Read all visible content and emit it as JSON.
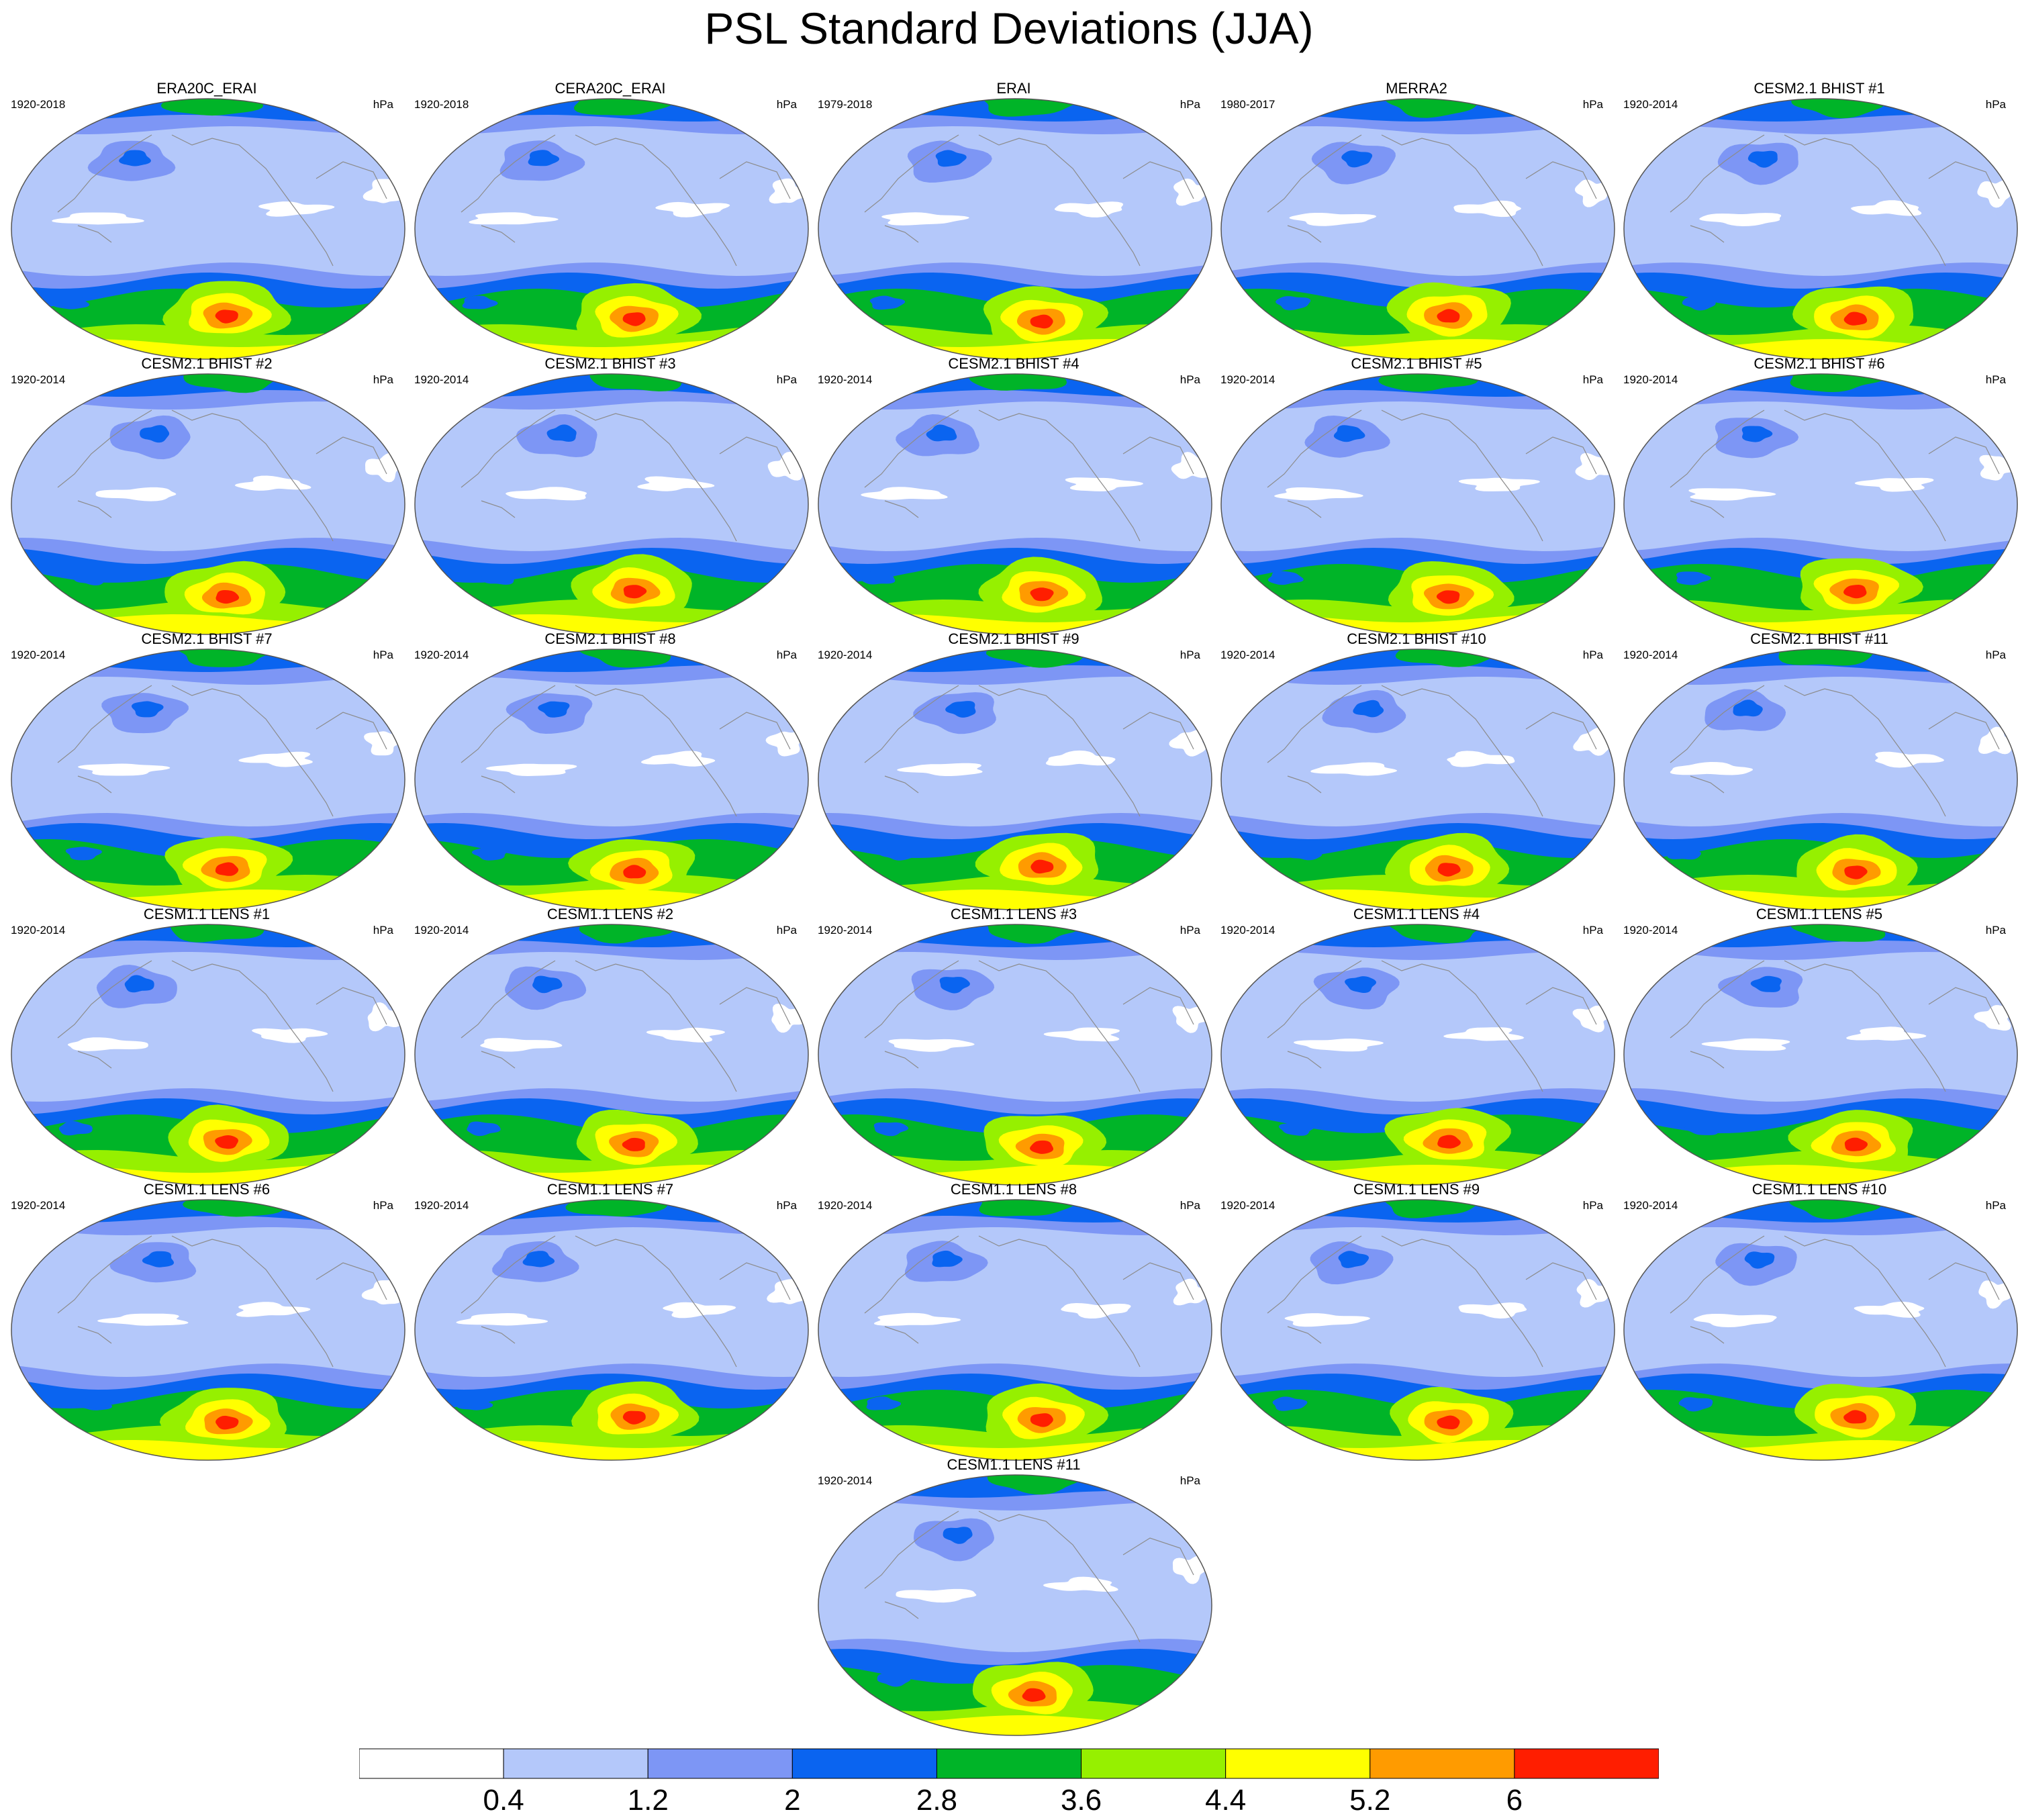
{
  "title": "PSL Standard Deviations (JJA)",
  "chart_data": {
    "type": "heatmap",
    "title": "PSL Standard Deviations (JJA)",
    "variable": "PSL",
    "season": "JJA",
    "units": "hPa",
    "projection": "global map",
    "contour_levels": [
      0.4,
      1.2,
      2,
      2.8,
      3.6,
      4.4,
      5.2,
      6
    ],
    "level_labels": [
      "0.4",
      "1.2",
      "2",
      "2.8",
      "3.6",
      "4.4",
      "5.2",
      "6"
    ],
    "colors": [
      "#ffffff",
      "#b4c8fa",
      "#7d96f5",
      "#0a64f0",
      "#00b428",
      "#96f000",
      "#ffff00",
      "#ff9b00",
      "#ff1e00"
    ],
    "panels": [
      {
        "title": "ERA20C_ERAI",
        "period": "1920-2018",
        "units": "hPa"
      },
      {
        "title": "CERA20C_ERAI",
        "period": "1920-2018",
        "units": "hPa"
      },
      {
        "title": "ERAI",
        "period": "1979-2018",
        "units": "hPa"
      },
      {
        "title": "MERRA2",
        "period": "1980-2017",
        "units": "hPa"
      },
      {
        "title": "CESM2.1 BHIST #1",
        "period": "1920-2014",
        "units": "hPa"
      },
      {
        "title": "CESM2.1 BHIST #2",
        "period": "1920-2014",
        "units": "hPa"
      },
      {
        "title": "CESM2.1 BHIST #3",
        "period": "1920-2014",
        "units": "hPa"
      },
      {
        "title": "CESM2.1 BHIST #4",
        "period": "1920-2014",
        "units": "hPa"
      },
      {
        "title": "CESM2.1 BHIST #5",
        "period": "1920-2014",
        "units": "hPa"
      },
      {
        "title": "CESM2.1 BHIST #6",
        "period": "1920-2014",
        "units": "hPa"
      },
      {
        "title": "CESM2.1 BHIST #7",
        "period": "1920-2014",
        "units": "hPa"
      },
      {
        "title": "CESM2.1 BHIST #8",
        "period": "1920-2014",
        "units": "hPa"
      },
      {
        "title": "CESM2.1 BHIST #9",
        "period": "1920-2014",
        "units": "hPa"
      },
      {
        "title": "CESM2.1 BHIST #10",
        "period": "1920-2014",
        "units": "hPa"
      },
      {
        "title": "CESM2.1 BHIST #11",
        "period": "1920-2014",
        "units": "hPa"
      },
      {
        "title": "CESM1.1 LENS #1",
        "period": "1920-2014",
        "units": "hPa"
      },
      {
        "title": "CESM1.1 LENS #2",
        "period": "1920-2014",
        "units": "hPa"
      },
      {
        "title": "CESM1.1 LENS #3",
        "period": "1920-2014",
        "units": "hPa"
      },
      {
        "title": "CESM1.1 LENS #4",
        "period": "1920-2014",
        "units": "hPa"
      },
      {
        "title": "CESM1.1 LENS #5",
        "period": "1920-2014",
        "units": "hPa"
      },
      {
        "title": "CESM1.1 LENS #6",
        "period": "1920-2014",
        "units": "hPa"
      },
      {
        "title": "CESM1.1 LENS #7",
        "period": "1920-2014",
        "units": "hPa"
      },
      {
        "title": "CESM1.1 LENS #8",
        "period": "1920-2014",
        "units": "hPa"
      },
      {
        "title": "CESM1.1 LENS #9",
        "period": "1920-2014",
        "units": "hPa"
      },
      {
        "title": "CESM1.1 LENS #10",
        "period": "1920-2014",
        "units": "hPa"
      },
      {
        "title": "CESM1.1 LENS #11",
        "period": "1920-2014",
        "units": "hPa"
      }
    ]
  }
}
